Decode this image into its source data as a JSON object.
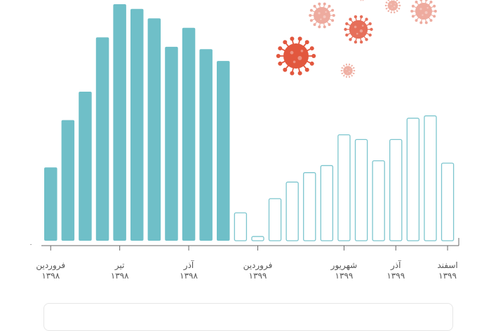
{
  "chart_data": {
    "type": "bar",
    "title": "",
    "xlabel": "",
    "ylabel": "",
    "ylim": [
      0,
      100
    ],
    "zero_label": "۰",
    "colors": {
      "series_1398": "#6fbfc8",
      "series_1399": "#ffffff",
      "series_1399_stroke": "#7cc5ce",
      "axis": "#666666",
      "virus_main": "#e2573e",
      "virus_light": "#eda395"
    },
    "series": [
      {
        "values": [
          31,
          51,
          63,
          86,
          100,
          98,
          94,
          82,
          90,
          81,
          76
        ],
        "style": "filled"
      },
      {
        "values": [
          12,
          2,
          18,
          25,
          29,
          32,
          45,
          43,
          34,
          43,
          52,
          53,
          33
        ],
        "style": "outline"
      }
    ],
    "x_labels": [
      {
        "month": "فروردین",
        "year": "۱۳۹۸",
        "bar_index": 0
      },
      {
        "month": "تیر",
        "year": "۱۳۹۸",
        "bar_index": 4
      },
      {
        "month": "آذر",
        "year": "۱۳۹۸",
        "bar_index": 8
      },
      {
        "month": "فروردین",
        "year": "۱۳۹۹",
        "bar_index": 12
      },
      {
        "month": "شهریور",
        "year": "۱۳۹۹",
        "bar_index": 17
      },
      {
        "month": "آذر",
        "year": "۱۳۹۹",
        "bar_index": 20
      },
      {
        "month": "اسفند",
        "year": "۱۳۹۹",
        "bar_index": 23
      }
    ],
    "decorations": [
      "virus-icon"
    ]
  }
}
